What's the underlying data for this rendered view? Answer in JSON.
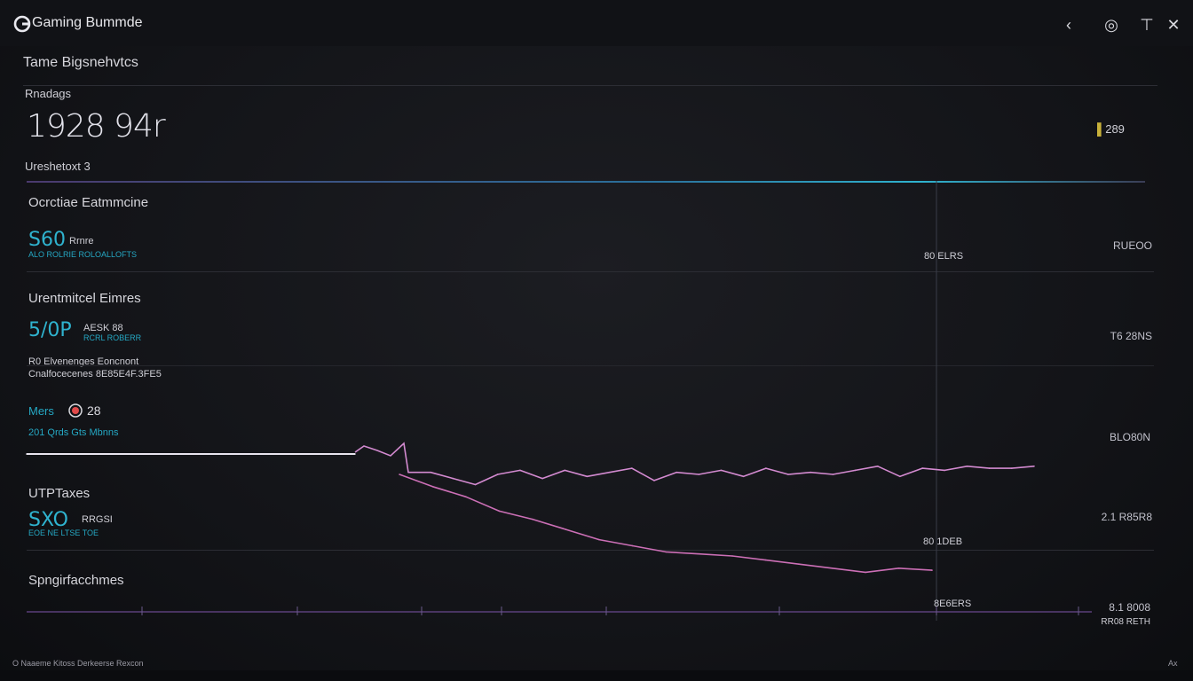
{
  "app": {
    "title": "Gaming Bummde"
  },
  "window_controls": {
    "back": "‹",
    "settings": "◎",
    "filter": "⊤",
    "close": "✕"
  },
  "header": {
    "title": "Tame Bigsnehvtcs"
  },
  "metric": {
    "label": "Rnadags",
    "value": "1928 94r",
    "side_value": "289",
    "sub_label": "Ureshetoxt 3"
  },
  "sections": [
    {
      "title": "Ocrctiae Eatmmcine",
      "kpi": "S60",
      "kpi_suffix": "Rrnre",
      "sub": "ALO ROLRIE  ROLOALLOFTS",
      "right": "RUEOO"
    },
    {
      "title": "Urentmitcel Eimres",
      "kpi": "5/0P",
      "kpi_suffix": "AESK 88",
      "sub": "RCRL ROBERR",
      "right": "T6 28NS",
      "note1": "R0 Elvenenges Eoncnont",
      "note2": "Cnalfocecenes 8E85E4F.3FE5"
    },
    {
      "title": "UTPTaxes",
      "kpi": "SXO",
      "kpi_suffix": "RRGSI",
      "sub": "EOE NE LTSE TOE",
      "right": "2.1 R85R8"
    },
    {
      "title": "Spngirfacchmes",
      "right": "8.1 8008"
    }
  ],
  "legend": {
    "value": "28",
    "prefix": "Mers",
    "label": "201 Qrds  Gts Mbnns",
    "right": "BLO80N"
  },
  "chart_labels": {
    "top": "80 ELRS",
    "mid": "80 1DEB",
    "bottom": "8E6ERS",
    "foot_right": "RR08 RETH"
  },
  "footer": {
    "left": "O Naaeme Kitoss   Derkeerse  Rexcon",
    "right": "Ax"
  },
  "colors": {
    "teal": "#25a8c4",
    "pink": "#c96fb7",
    "white": "#e8e4ee"
  },
  "chart_data": {
    "type": "line",
    "series": [
      {
        "name": "",
        "color": "#d38ad0",
        "values": [
          0.49,
          0.49,
          0.52,
          0.55,
          0.5,
          0.48,
          0.52,
          0.48,
          0.51,
          0.49,
          0.47,
          0.53,
          0.49,
          0.5,
          0.48,
          0.51,
          0.47,
          0.5,
          0.49,
          0.5,
          0.48,
          0.46,
          0.51,
          0.47,
          0.48,
          0.46,
          0.47,
          0.47,
          0.46
        ]
      },
      {
        "name": "",
        "color": "#cc6fb6",
        "values": [
          0.5,
          0.56,
          0.61,
          0.68,
          0.72,
          0.77,
          0.82,
          0.85,
          0.88,
          0.89,
          0.9,
          0.92,
          0.94,
          0.96,
          0.98,
          0.96,
          0.97
        ]
      },
      {
        "name": "",
        "color": "#e8e4ee",
        "values": [
          0.4,
          0.4,
          0.4,
          0.4,
          0.4
        ]
      }
    ]
  }
}
